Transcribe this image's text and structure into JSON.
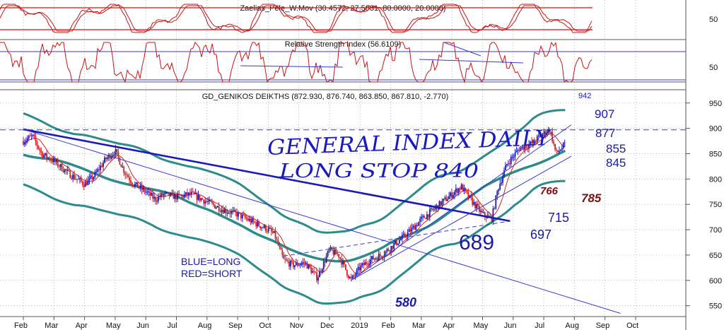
{
  "chart_data": {
    "type": "candlestick",
    "title": "GD_GENIKOS DEIKTHS (872.930, 876.740, 863.850, 867.810, -2.770)",
    "panels": [
      {
        "name": "oscillator",
        "title": "Zaelias_Pele_W.Mov (30.4572, 27.5031, 80.0000, 20.0000)",
        "y_ticks": [
          "50"
        ],
        "reference_levels": [
          80,
          20
        ]
      },
      {
        "name": "rsi",
        "title": "Relative Strength Index (56.6109)",
        "y_ticks": [
          "50"
        ],
        "reference_levels": [
          70,
          30
        ]
      }
    ],
    "main_panel": {
      "x_labels": [
        "Feb",
        "Mar",
        "Apr",
        "May",
        "Jun",
        "Jul",
        "Aug",
        "Sep",
        "Oct",
        "Nov",
        "Dec",
        "2019",
        "Feb",
        "Mar",
        "Apr",
        "May",
        "Jun",
        "Jul",
        "Aug",
        "Sep",
        "Oct"
      ],
      "y_ticks": [
        "950",
        "900",
        "850",
        "800",
        "750",
        "700",
        "650",
        "600",
        "550"
      ],
      "ylim": [
        530,
        965
      ],
      "price_path": [
        {
          "m": 0.0,
          "v": 875
        },
        {
          "m": 0.3,
          "v": 885
        },
        {
          "m": 0.6,
          "v": 850
        },
        {
          "m": 1.0,
          "v": 835
        },
        {
          "m": 1.5,
          "v": 810
        },
        {
          "m": 2.0,
          "v": 790
        },
        {
          "m": 2.3,
          "v": 805
        },
        {
          "m": 2.7,
          "v": 840
        },
        {
          "m": 3.0,
          "v": 855
        },
        {
          "m": 3.3,
          "v": 815
        },
        {
          "m": 3.6,
          "v": 790
        },
        {
          "m": 4.0,
          "v": 775
        },
        {
          "m": 4.3,
          "v": 760
        },
        {
          "m": 4.6,
          "v": 770
        },
        {
          "m": 5.0,
          "v": 765
        },
        {
          "m": 5.5,
          "v": 770
        },
        {
          "m": 6.0,
          "v": 755
        },
        {
          "m": 6.5,
          "v": 740
        },
        {
          "m": 7.0,
          "v": 730
        },
        {
          "m": 7.5,
          "v": 715
        },
        {
          "m": 8.0,
          "v": 700
        },
        {
          "m": 8.2,
          "v": 690
        },
        {
          "m": 8.5,
          "v": 640
        },
        {
          "m": 8.8,
          "v": 630
        },
        {
          "m": 9.2,
          "v": 635
        },
        {
          "m": 9.6,
          "v": 605
        },
        {
          "m": 10.0,
          "v": 660
        },
        {
          "m": 10.3,
          "v": 650
        },
        {
          "m": 10.7,
          "v": 600
        },
        {
          "m": 11.0,
          "v": 625
        },
        {
          "m": 11.3,
          "v": 640
        },
        {
          "m": 11.7,
          "v": 650
        },
        {
          "m": 12.0,
          "v": 665
        },
        {
          "m": 12.5,
          "v": 690
        },
        {
          "m": 13.0,
          "v": 720
        },
        {
          "m": 13.5,
          "v": 745
        },
        {
          "m": 14.0,
          "v": 770
        },
        {
          "m": 14.3,
          "v": 785
        },
        {
          "m": 14.6,
          "v": 760
        },
        {
          "m": 15.0,
          "v": 730
        },
        {
          "m": 15.3,
          "v": 722
        },
        {
          "m": 15.5,
          "v": 780
        },
        {
          "m": 15.8,
          "v": 830
        },
        {
          "m": 16.2,
          "v": 860
        },
        {
          "m": 16.6,
          "v": 870
        },
        {
          "m": 17.0,
          "v": 890
        },
        {
          "m": 17.2,
          "v": 898
        },
        {
          "m": 17.4,
          "v": 850
        },
        {
          "m": 17.7,
          "v": 868
        }
      ],
      "horizontal_levels": [
        {
          "value": 897,
          "style": "dashed",
          "color": "#3a3ad0"
        }
      ],
      "trendlines": [
        {
          "from": {
            "m": 0.0,
            "v": 898
          },
          "to": {
            "m": 15.9,
            "v": 717
          },
          "color": "#1a1ab8",
          "width": "heavy"
        },
        {
          "from": {
            "m": 0.0,
            "v": 898
          },
          "to": {
            "m": 19.5,
            "v": 535
          },
          "color": "#3a3ad0",
          "width": "thin"
        },
        {
          "from": {
            "m": 8.5,
            "v": 648
          },
          "to": {
            "m": 15.9,
            "v": 717
          },
          "color": "#3a3ad0",
          "width": "thin",
          "style": "dashed"
        },
        {
          "from": {
            "m": 10.7,
            "v": 600
          },
          "to": {
            "m": 17.9,
            "v": 907
          },
          "color": "#3a3ad0",
          "width": "thin"
        },
        {
          "from": {
            "m": 10.7,
            "v": 600
          },
          "to": {
            "m": 17.9,
            "v": 845
          },
          "color": "#3a3ad0",
          "width": "thin"
        }
      ],
      "annotations": [
        {
          "text": "GENERAL INDEX DAILY",
          "kind": "handwritten"
        },
        {
          "text": "LONG STOP 840",
          "kind": "handwritten"
        },
        {
          "text": "BLUE=LONG",
          "kind": "legend"
        },
        {
          "text": "RED=SHORT",
          "kind": "legend"
        },
        {
          "text": "942",
          "kind": "level_blue"
        },
        {
          "text": "907",
          "kind": "level_blue"
        },
        {
          "text": "877",
          "kind": "level_blue"
        },
        {
          "text": "855",
          "kind": "level_blue"
        },
        {
          "text": "845",
          "kind": "level_blue"
        },
        {
          "text": "715",
          "kind": "level_blue"
        },
        {
          "text": "697",
          "kind": "level_blue"
        },
        {
          "text": "689",
          "kind": "level_blue_large"
        },
        {
          "text": "580",
          "kind": "level_blue_italic"
        },
        {
          "text": "766",
          "kind": "level_red"
        },
        {
          "text": "785",
          "kind": "level_red"
        }
      ]
    },
    "colors": {
      "long_trend": "#1a1ab8",
      "thin_trend": "#3a3ad0",
      "bands": "#2e8b8b",
      "candles_down": "#d42020",
      "candles_up": "#1a1ab8",
      "moving_average": "#d42020",
      "oscillator_line": "#c81414",
      "reference_lines": "#c81414",
      "rsi_reference": "#3a3ad0"
    }
  }
}
